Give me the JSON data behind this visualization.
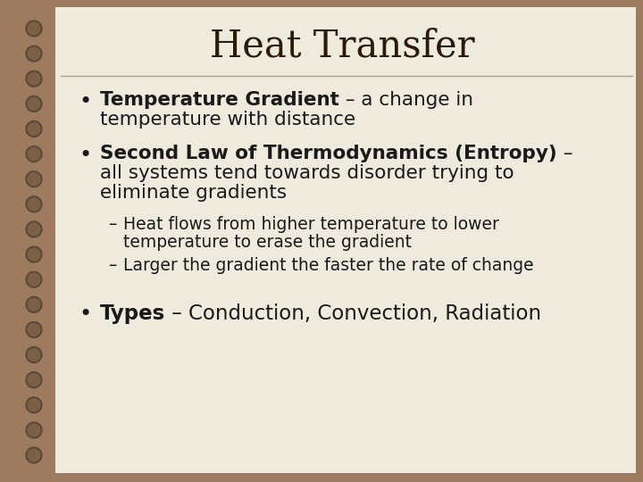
{
  "title": "Heat Transfer",
  "background_outer": "#9e7b5e",
  "background_inner": "#eeeade",
  "title_color": "#2b1d0e",
  "text_color": "#1a1a1a",
  "separator_color": "#a09080",
  "title_fontsize": 32,
  "body_fontsize": 15,
  "sub_fontsize": 13,
  "bullet1_bold": "Temperature Gradient",
  "bullet1_rest": " – a change in\ntemperature with distance",
  "bullet2_bold": "Second Law of Thermodynamics (Entropy)",
  "bullet2_rest": " –\nall systems tend towards disorder trying to\neliminate gradients",
  "sub1": "–  Heat flows from higher temperature to lower\n   temperature to erase the gradient",
  "sub2": "–  Larger the gradient the faster the rate of change",
  "bullet3_bold": "Types",
  "bullet3_rest": " – Conduction, Convection, Radiation"
}
